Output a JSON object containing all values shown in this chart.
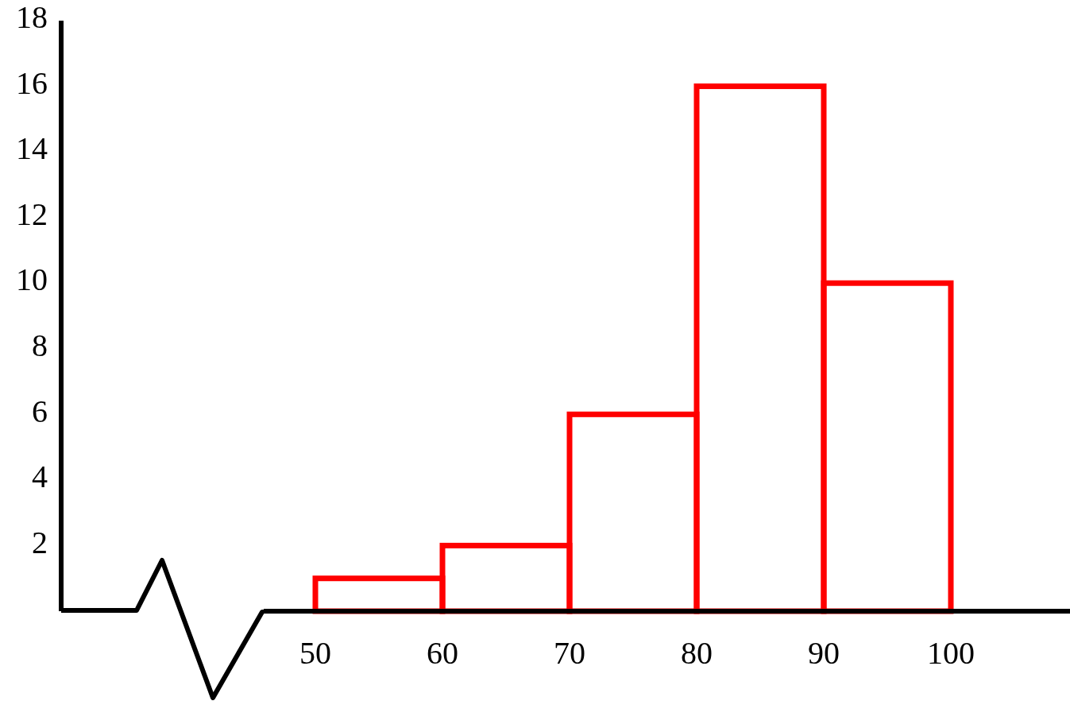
{
  "chart_data": {
    "type": "histogram",
    "bins": [
      50,
      60,
      70,
      80,
      90,
      100
    ],
    "values": [
      1,
      2,
      6,
      16,
      10
    ],
    "color": "#ff0000",
    "xlim": [
      30,
      109
    ],
    "xticks": [
      50,
      60,
      70,
      80,
      90,
      100
    ],
    "ylim": [
      0,
      18
    ],
    "yticks": [
      2,
      4,
      6,
      8,
      10,
      12,
      14,
      16,
      18
    ],
    "grid": false
  }
}
